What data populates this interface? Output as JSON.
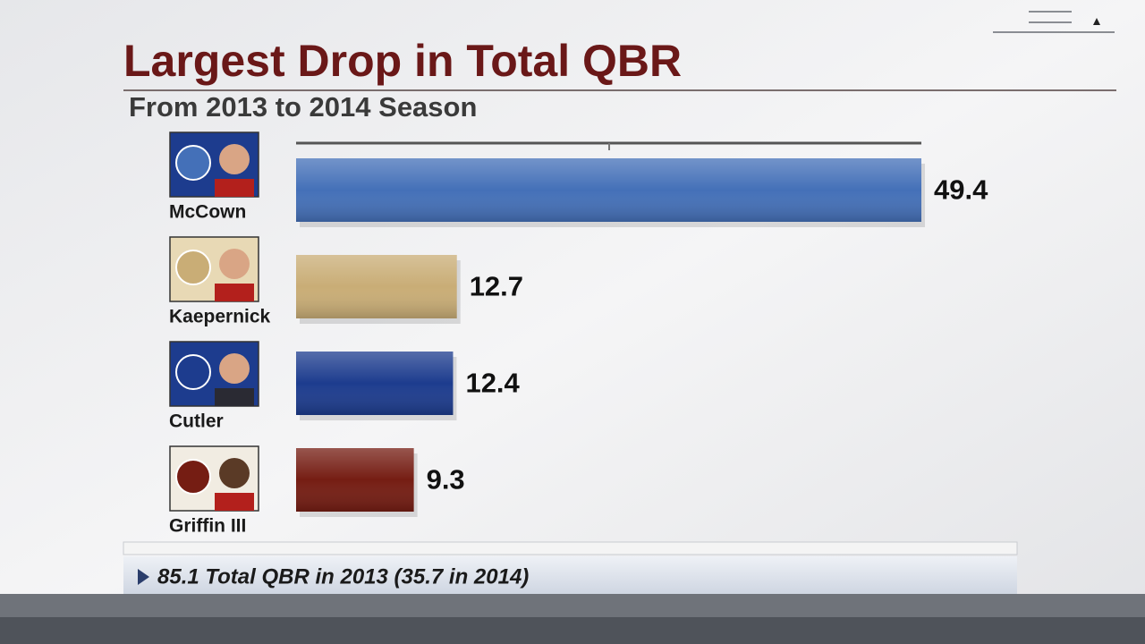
{
  "chart_data": {
    "type": "bar",
    "orientation": "horizontal",
    "title": "Largest Drop in Total QBR",
    "subtitle": "From 2013 to 2014 Season",
    "categories": [
      "McCown",
      "Kaepernick",
      "Cutler",
      "Griffin III"
    ],
    "values": [
      49.4,
      12.7,
      12.4,
      9.3
    ],
    "colors": [
      "#4470b8",
      "#c9ad76",
      "#1d3c8e",
      "#751d13"
    ],
    "xlim": [
      0,
      49.4
    ],
    "annotation": "85.1 Total QBR in 2013 (35.7 in 2014)"
  }
}
